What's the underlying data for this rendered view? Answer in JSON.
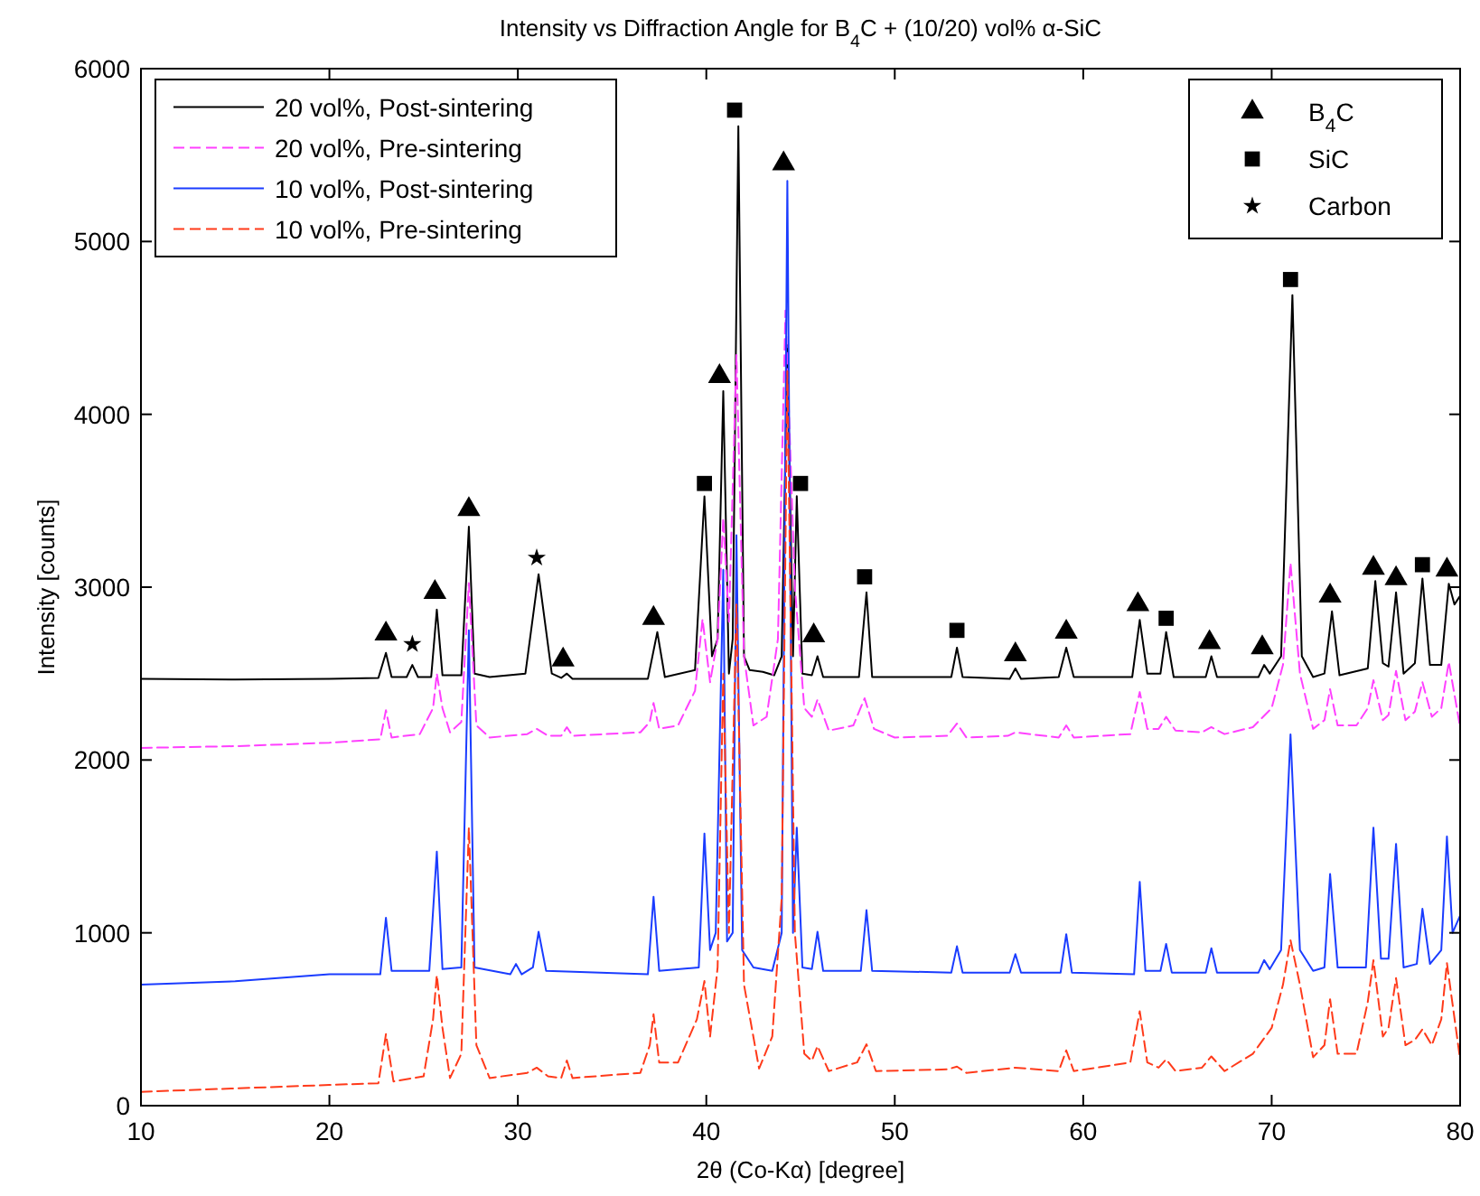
{
  "chart_data": {
    "type": "line",
    "title": "Intensity vs Diffraction Angle for B$_{4}$C + (10/20) vol% α-SiC",
    "xlabel": "2θ (Co-Kα) [degree]",
    "ylabel": "Intensity [counts]",
    "xlim": [
      10,
      80
    ],
    "ylim": [
      0,
      6000
    ],
    "xticks": [
      10,
      20,
      30,
      40,
      50,
      60,
      70,
      80
    ],
    "yticks": [
      0,
      1000,
      2000,
      3000,
      4000,
      5000,
      6000
    ],
    "grid": false,
    "legend": "top left",
    "series": [
      {
        "name": "20 vol%, Post-sintering",
        "color": "#000000",
        "line_style": "solid",
        "x": [
          10,
          15,
          20,
          22.6,
          23.0,
          23.3,
          24.1,
          24.4,
          24.7,
          25.4,
          25.7,
          26.0,
          27.0,
          27.4,
          27.7,
          28.5,
          30.4,
          31.1,
          31.8,
          32.3,
          32.6,
          32.9,
          36.9,
          37.4,
          37.8,
          39.4,
          39.9,
          40.3,
          40.6,
          40.9,
          41.2,
          41.4,
          41.7,
          42.0,
          42.3,
          43.0,
          43.6,
          44.0,
          44.3,
          44.6,
          44.8,
          45.1,
          45.6,
          45.9,
          46.2,
          48.1,
          48.5,
          48.8,
          53.0,
          53.3,
          53.6,
          56.1,
          56.4,
          56.7,
          58.7,
          59.1,
          59.5,
          62.6,
          63.0,
          63.4,
          64.1,
          64.4,
          64.8,
          66.5,
          66.8,
          67.1,
          69.3,
          69.6,
          69.9,
          70.5,
          71.1,
          71.6,
          72.2,
          72.8,
          73.2,
          73.6,
          75.1,
          75.5,
          75.9,
          76.2,
          76.6,
          77.0,
          77.6,
          78.0,
          78.4,
          79.0,
          79.4,
          79.7,
          80
        ],
        "values": [
          2470,
          2465,
          2470,
          2475,
          2620,
          2480,
          2480,
          2550,
          2480,
          2480,
          2870,
          2490,
          2490,
          3350,
          2500,
          2480,
          2500,
          3075,
          2500,
          2475,
          2500,
          2470,
          2470,
          2740,
          2480,
          2520,
          3525,
          2600,
          2700,
          4134,
          2500,
          2700,
          5667,
          2600,
          2520,
          2510,
          2490,
          2600,
          4400,
          2600,
          3527,
          2500,
          2490,
          2600,
          2480,
          2480,
          2970,
          2480,
          2480,
          2650,
          2480,
          2470,
          2530,
          2470,
          2480,
          2650,
          2480,
          2480,
          2810,
          2500,
          2500,
          2740,
          2480,
          2480,
          2600,
          2480,
          2480,
          2550,
          2500,
          2600,
          4690,
          2600,
          2480,
          2500,
          2860,
          2490,
          2530,
          3035,
          2560,
          2540,
          2970,
          2500,
          2560,
          3050,
          2550,
          2550,
          3020,
          2900,
          2950
        ]
      },
      {
        "name": "20 vol%, Pre-sintering",
        "color": "#ff40ff",
        "line_style": "dashed",
        "x": [
          10,
          15,
          20,
          22.7,
          23.0,
          23.3,
          24.8,
          25.5,
          25.7,
          26.0,
          26.4,
          27.0,
          27.4,
          27.8,
          28.5,
          30.5,
          31.0,
          31.6,
          32.3,
          32.6,
          32.9,
          36.5,
          37.0,
          37.2,
          37.5,
          38.5,
          39.4,
          39.8,
          40.2,
          40.6,
          40.9,
          41.2,
          41.6,
          42.0,
          42.5,
          43.2,
          43.8,
          44.2,
          44.7,
          45.2,
          45.6,
          45.9,
          46.5,
          47.8,
          48.4,
          48.9,
          50,
          52.8,
          53.3,
          53.8,
          56,
          56.4,
          58.7,
          59.1,
          59.5,
          62.5,
          63.0,
          63.4,
          64.0,
          64.4,
          64.9,
          66.3,
          66.8,
          67.5,
          69.0,
          70.0,
          70.6,
          71.0,
          71.5,
          72.2,
          72.8,
          73.1,
          73.5,
          74.5,
          75.1,
          75.4,
          75.9,
          76.2,
          76.6,
          77.1,
          77.6,
          78.0,
          78.5,
          79.0,
          79.4,
          80
        ],
        "values": [
          2070,
          2080,
          2100,
          2120,
          2288,
          2130,
          2150,
          2300,
          2500,
          2300,
          2160,
          2220,
          3023,
          2200,
          2130,
          2150,
          2180,
          2140,
          2140,
          2190,
          2140,
          2160,
          2220,
          2330,
          2180,
          2200,
          2400,
          2815,
          2450,
          2700,
          3400,
          2800,
          4343,
          2600,
          2200,
          2250,
          2700,
          4600,
          3000,
          2300,
          2250,
          2350,
          2170,
          2200,
          2357,
          2180,
          2130,
          2140,
          2211,
          2130,
          2140,
          2160,
          2130,
          2200,
          2130,
          2150,
          2393,
          2180,
          2180,
          2250,
          2170,
          2160,
          2190,
          2150,
          2190,
          2300,
          2550,
          3140,
          2500,
          2180,
          2230,
          2410,
          2200,
          2200,
          2300,
          2462,
          2230,
          2260,
          2515,
          2230,
          2280,
          2450,
          2250,
          2300,
          2567,
          2190
        ]
      },
      {
        "name": "10 vol%, Post-sintering",
        "color": "#1a3cff",
        "line_style": "solid",
        "x": [
          10,
          15,
          20,
          22.7,
          23.0,
          23.3,
          25.3,
          25.7,
          26.0,
          27.0,
          27.4,
          27.7,
          29.6,
          29.9,
          30.2,
          30.8,
          31.1,
          31.5,
          36.9,
          37.2,
          37.5,
          39.6,
          39.9,
          40.2,
          40.5,
          40.9,
          41.1,
          41.4,
          41.6,
          41.9,
          42.5,
          43.5,
          44.0,
          44.3,
          44.6,
          44.8,
          45.1,
          45.6,
          45.9,
          46.2,
          48.2,
          48.5,
          48.8,
          53.0,
          53.3,
          53.6,
          56.1,
          56.4,
          56.7,
          58.8,
          59.1,
          59.4,
          62.7,
          63.0,
          63.3,
          64.1,
          64.4,
          64.7,
          66.5,
          66.8,
          67.1,
          69.3,
          69.6,
          69.9,
          70.5,
          71.0,
          71.5,
          72.2,
          72.8,
          73.1,
          73.5,
          75.0,
          75.4,
          75.8,
          76.2,
          76.6,
          77.0,
          77.7,
          78.0,
          78.4,
          79.0,
          79.3,
          79.6,
          80
        ],
        "values": [
          700,
          720,
          760,
          760,
          1087,
          780,
          780,
          1470,
          790,
          800,
          2750,
          800,
          760,
          820,
          760,
          800,
          1006,
          780,
          760,
          1208,
          780,
          800,
          1574,
          900,
          1000,
          3100,
          950,
          1000,
          3300,
          900,
          800,
          780,
          1000,
          5350,
          1000,
          1609,
          800,
          790,
          1006,
          780,
          780,
          1131,
          780,
          770,
          922,
          770,
          770,
          877,
          770,
          770,
          992,
          770,
          760,
          1295,
          780,
          780,
          936,
          770,
          770,
          911,
          770,
          770,
          842,
          790,
          900,
          2148,
          900,
          780,
          800,
          1340,
          800,
          800,
          1609,
          850,
          850,
          1515,
          800,
          820,
          1139,
          820,
          900,
          1557,
          1000,
          1100
        ]
      },
      {
        "name": "10 vol%, Pre-sintering",
        "color": "#ff3a1a",
        "line_style": "dashed",
        "x": [
          10,
          15,
          20,
          22.6,
          23.0,
          23.4,
          25.0,
          25.5,
          25.7,
          26.0,
          26.4,
          27.0,
          27.4,
          27.8,
          28.5,
          30.5,
          31.0,
          31.6,
          32.3,
          32.6,
          32.9,
          36.5,
          37.0,
          37.2,
          37.5,
          38.5,
          39.5,
          39.9,
          40.2,
          40.6,
          40.9,
          41.2,
          41.6,
          42.0,
          42.8,
          43.5,
          44.0,
          44.3,
          44.7,
          45.2,
          45.6,
          45.9,
          46.5,
          48.0,
          48.5,
          49.0,
          52.8,
          53.3,
          53.8,
          56.4,
          58.7,
          59.1,
          59.5,
          62.5,
          63.0,
          63.4,
          64.0,
          64.4,
          64.9,
          66.3,
          66.8,
          67.5,
          69.0,
          70.0,
          70.6,
          71.0,
          71.5,
          72.2,
          72.8,
          73.1,
          73.5,
          74.5,
          75.1,
          75.4,
          75.9,
          76.2,
          76.6,
          77.1,
          77.6,
          78.0,
          78.5,
          79.0,
          79.3,
          80
        ],
        "values": [
          80,
          100,
          120,
          130,
          414,
          140,
          170,
          500,
          755,
          450,
          160,
          300,
          1609,
          350,
          160,
          190,
          220,
          170,
          160,
          261,
          160,
          190,
          350,
          529,
          250,
          250,
          500,
          721,
          400,
          800,
          2500,
          1000,
          2900,
          700,
          215,
          400,
          1200,
          4250,
          1000,
          300,
          260,
          345,
          200,
          250,
          355,
          200,
          210,
          226,
          190,
          220,
          200,
          320,
          200,
          250,
          546,
          250,
          220,
          268,
          200,
          220,
          285,
          200,
          300,
          450,
          700,
          957,
          700,
          280,
          350,
          616,
          300,
          300,
          600,
          842,
          400,
          450,
          738,
          350,
          380,
          442,
          350,
          500,
          825,
          268
        ]
      },
      {
        "name": "B$_{4}$C",
        "type": "scatter",
        "marker": "triangle",
        "color": "#000000",
        "x": [
          23.0,
          25.6,
          27.4,
          32.4,
          37.2,
          40.7,
          44.1,
          45.7,
          56.4,
          59.1,
          62.9,
          66.7,
          69.5,
          73.1,
          75.4,
          76.6,
          79.3
        ],
        "values": [
          2730,
          2970,
          3450,
          2580,
          2820,
          4220,
          5450,
          2720,
          2610,
          2740,
          2900,
          2680,
          2650,
          2950,
          3110,
          3050,
          3100
        ]
      },
      {
        "name": "SiC",
        "type": "scatter",
        "marker": "square",
        "color": "#000000",
        "x": [
          39.9,
          41.5,
          45.0,
          48.4,
          53.3,
          64.4,
          71.0,
          78.0
        ],
        "values": [
          3600,
          5760,
          3600,
          3060,
          2750,
          2820,
          4780,
          3130
        ]
      },
      {
        "name": "Carbon",
        "type": "scatter",
        "marker": "star",
        "color": "#000000",
        "x": [
          24.4,
          31.0
        ],
        "values": [
          2670,
          3170
        ]
      }
    ]
  }
}
